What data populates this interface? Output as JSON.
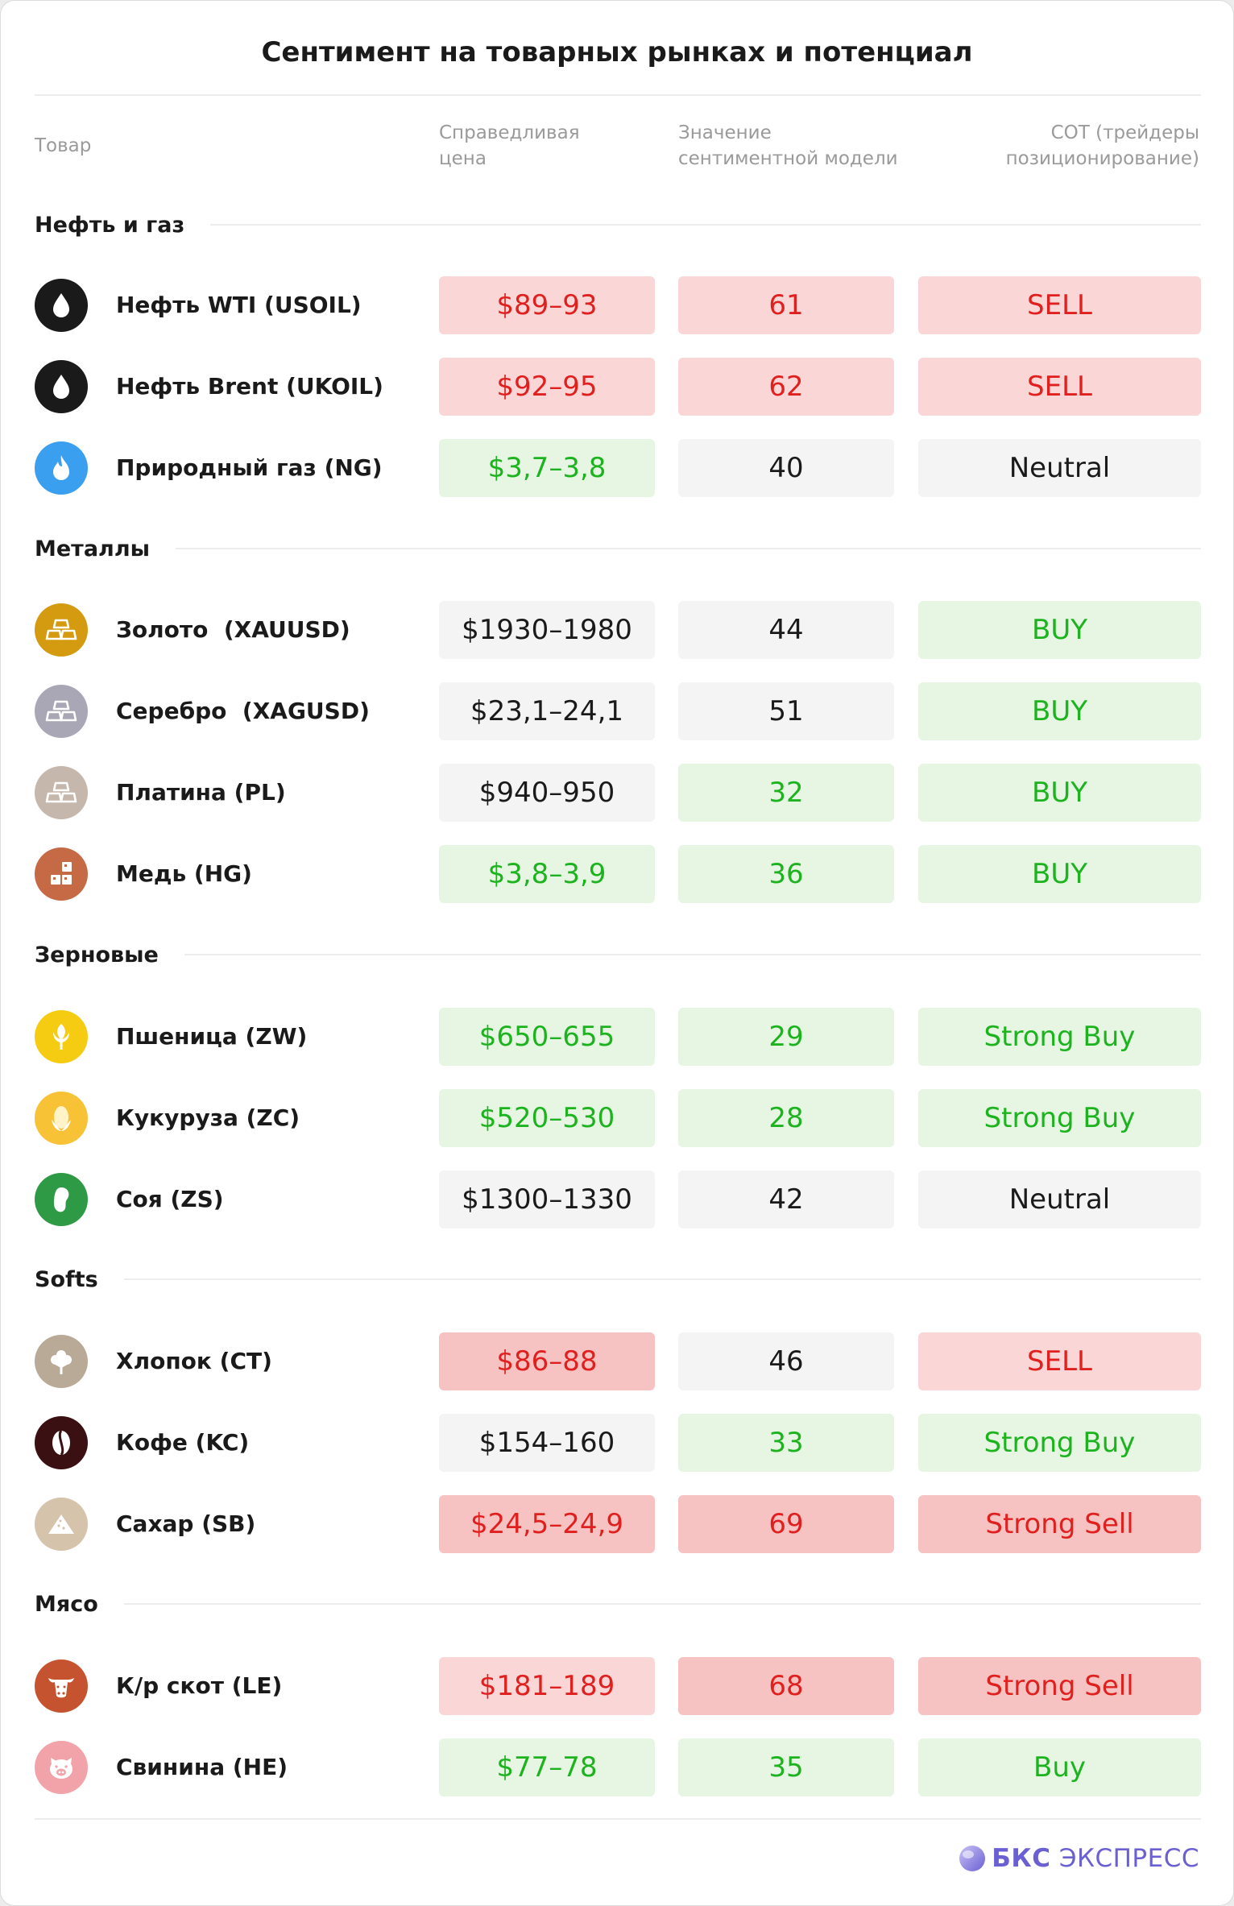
{
  "title": "Сентимент на товарных рынках и потенциал",
  "headers": {
    "product": "Товар",
    "fair_price_l1": "Справедливая",
    "fair_price_l2": "цена",
    "sentiment_l1": "Значение",
    "sentiment_l2": "сентиментной модели",
    "cot_l1": "COT (трейдеры",
    "cot_l2": "позиционирование)"
  },
  "sections": [
    {
      "label": "Нефть и газ"
    },
    {
      "label": "Металлы"
    },
    {
      "label": "Зерновые"
    },
    {
      "label": "Softs"
    },
    {
      "label": "Мясо"
    }
  ],
  "rows": [
    {
      "name": "Нефть WTI (USOIL)",
      "icon": "oil-drop-icon",
      "icon_color": "#1a1a1a",
      "price": "$89–93",
      "price_tone": "red",
      "sentiment": "61",
      "sentiment_tone": "red",
      "cot": "SELL",
      "cot_tone": "red"
    },
    {
      "name": "Нефть Brent (UKOIL)",
      "icon": "oil-drop-icon",
      "icon_color": "#1a1a1a",
      "price": "$92–95",
      "price_tone": "red",
      "sentiment": "62",
      "sentiment_tone": "red",
      "cot": "SELL",
      "cot_tone": "red"
    },
    {
      "name": "Природный газ (NG)",
      "icon": "flame-icon",
      "icon_color": "#3b9ff0",
      "price": "$3,7–3,8",
      "price_tone": "green",
      "sentiment": "40",
      "sentiment_tone": "neutral",
      "cot": "Neutral",
      "cot_tone": "neutral"
    },
    {
      "name": "Золото  (XAUUSD)",
      "icon": "gold-bars-icon",
      "icon_color": "#d49a10",
      "price": "$1930–1980",
      "price_tone": "neutral",
      "sentiment": "44",
      "sentiment_tone": "neutral",
      "cot": "BUY",
      "cot_tone": "green"
    },
    {
      "name": "Серебро  (XAGUSD)",
      "icon": "silver-bars-icon",
      "icon_color": "#a9a7b6",
      "price": "$23,1–24,1",
      "price_tone": "neutral",
      "sentiment": "51",
      "sentiment_tone": "neutral",
      "cot": "BUY",
      "cot_tone": "green"
    },
    {
      "name": "Платина (PL)",
      "icon": "platinum-bars-icon",
      "icon_color": "#c5b7ac",
      "price": "$940–950",
      "price_tone": "neutral",
      "sentiment": "32",
      "sentiment_tone": "green",
      "cot": "BUY",
      "cot_tone": "green"
    },
    {
      "name": "Медь (HG)",
      "icon": "copper-blocks-icon",
      "icon_color": "#c56a45",
      "price": "$3,8–3,9",
      "price_tone": "green",
      "sentiment": "36",
      "sentiment_tone": "green",
      "cot": "BUY",
      "cot_tone": "green"
    },
    {
      "name": "Пшеница (ZW)",
      "icon": "wheat-icon",
      "icon_color": "#f5cc12",
      "price": "$650–655",
      "price_tone": "green",
      "sentiment": "29",
      "sentiment_tone": "green",
      "cot": "Strong Buy",
      "cot_tone": "green"
    },
    {
      "name": "Кукуруза (ZC)",
      "icon": "corn-icon",
      "icon_color": "#f7c235",
      "price": "$520–530",
      "price_tone": "green",
      "sentiment": "28",
      "sentiment_tone": "green",
      "cot": "Strong Buy",
      "cot_tone": "green"
    },
    {
      "name": "Соя (ZS)",
      "icon": "soybean-icon",
      "icon_color": "#2f9a45",
      "price": "$1300–1330",
      "price_tone": "neutral",
      "sentiment": "42",
      "sentiment_tone": "neutral",
      "cot": "Neutral",
      "cot_tone": "neutral"
    },
    {
      "name": "Хлопок (CT)",
      "icon": "cotton-icon",
      "icon_color": "#b9aa97",
      "price": "$86–88",
      "price_tone": "red2",
      "sentiment": "46",
      "sentiment_tone": "neutral",
      "cot": "SELL",
      "cot_tone": "red"
    },
    {
      "name": "Кофе (KC)",
      "icon": "coffee-bean-icon",
      "icon_color": "#3a1012",
      "price": "$154–160",
      "price_tone": "neutral",
      "sentiment": "33",
      "sentiment_tone": "green",
      "cot": "Strong Buy",
      "cot_tone": "green"
    },
    {
      "name": "Сахар (SB)",
      "icon": "sugar-pile-icon",
      "icon_color": "#d5c3ab",
      "price": "$24,5–24,9",
      "price_tone": "red2",
      "sentiment": "69",
      "sentiment_tone": "red2",
      "cot": "Strong Sell",
      "cot_tone": "red2"
    },
    {
      "name": "К/р скот (LE)",
      "icon": "cattle-icon",
      "icon_color": "#c5532f",
      "price": "$181–189",
      "price_tone": "red",
      "sentiment": "68",
      "sentiment_tone": "red2",
      "cot": "Strong Sell",
      "cot_tone": "red2"
    },
    {
      "name": "Свинина (HE)",
      "icon": "pig-icon",
      "icon_color": "#f2a3a9",
      "price": "$77–78",
      "price_tone": "green",
      "sentiment": "35",
      "sentiment_tone": "green",
      "cot": "Buy",
      "cot_tone": "green"
    }
  ],
  "brand": {
    "part1": "БКС",
    "part2": "ЭКСПРЕСС",
    "color": "#6b5fd4"
  }
}
